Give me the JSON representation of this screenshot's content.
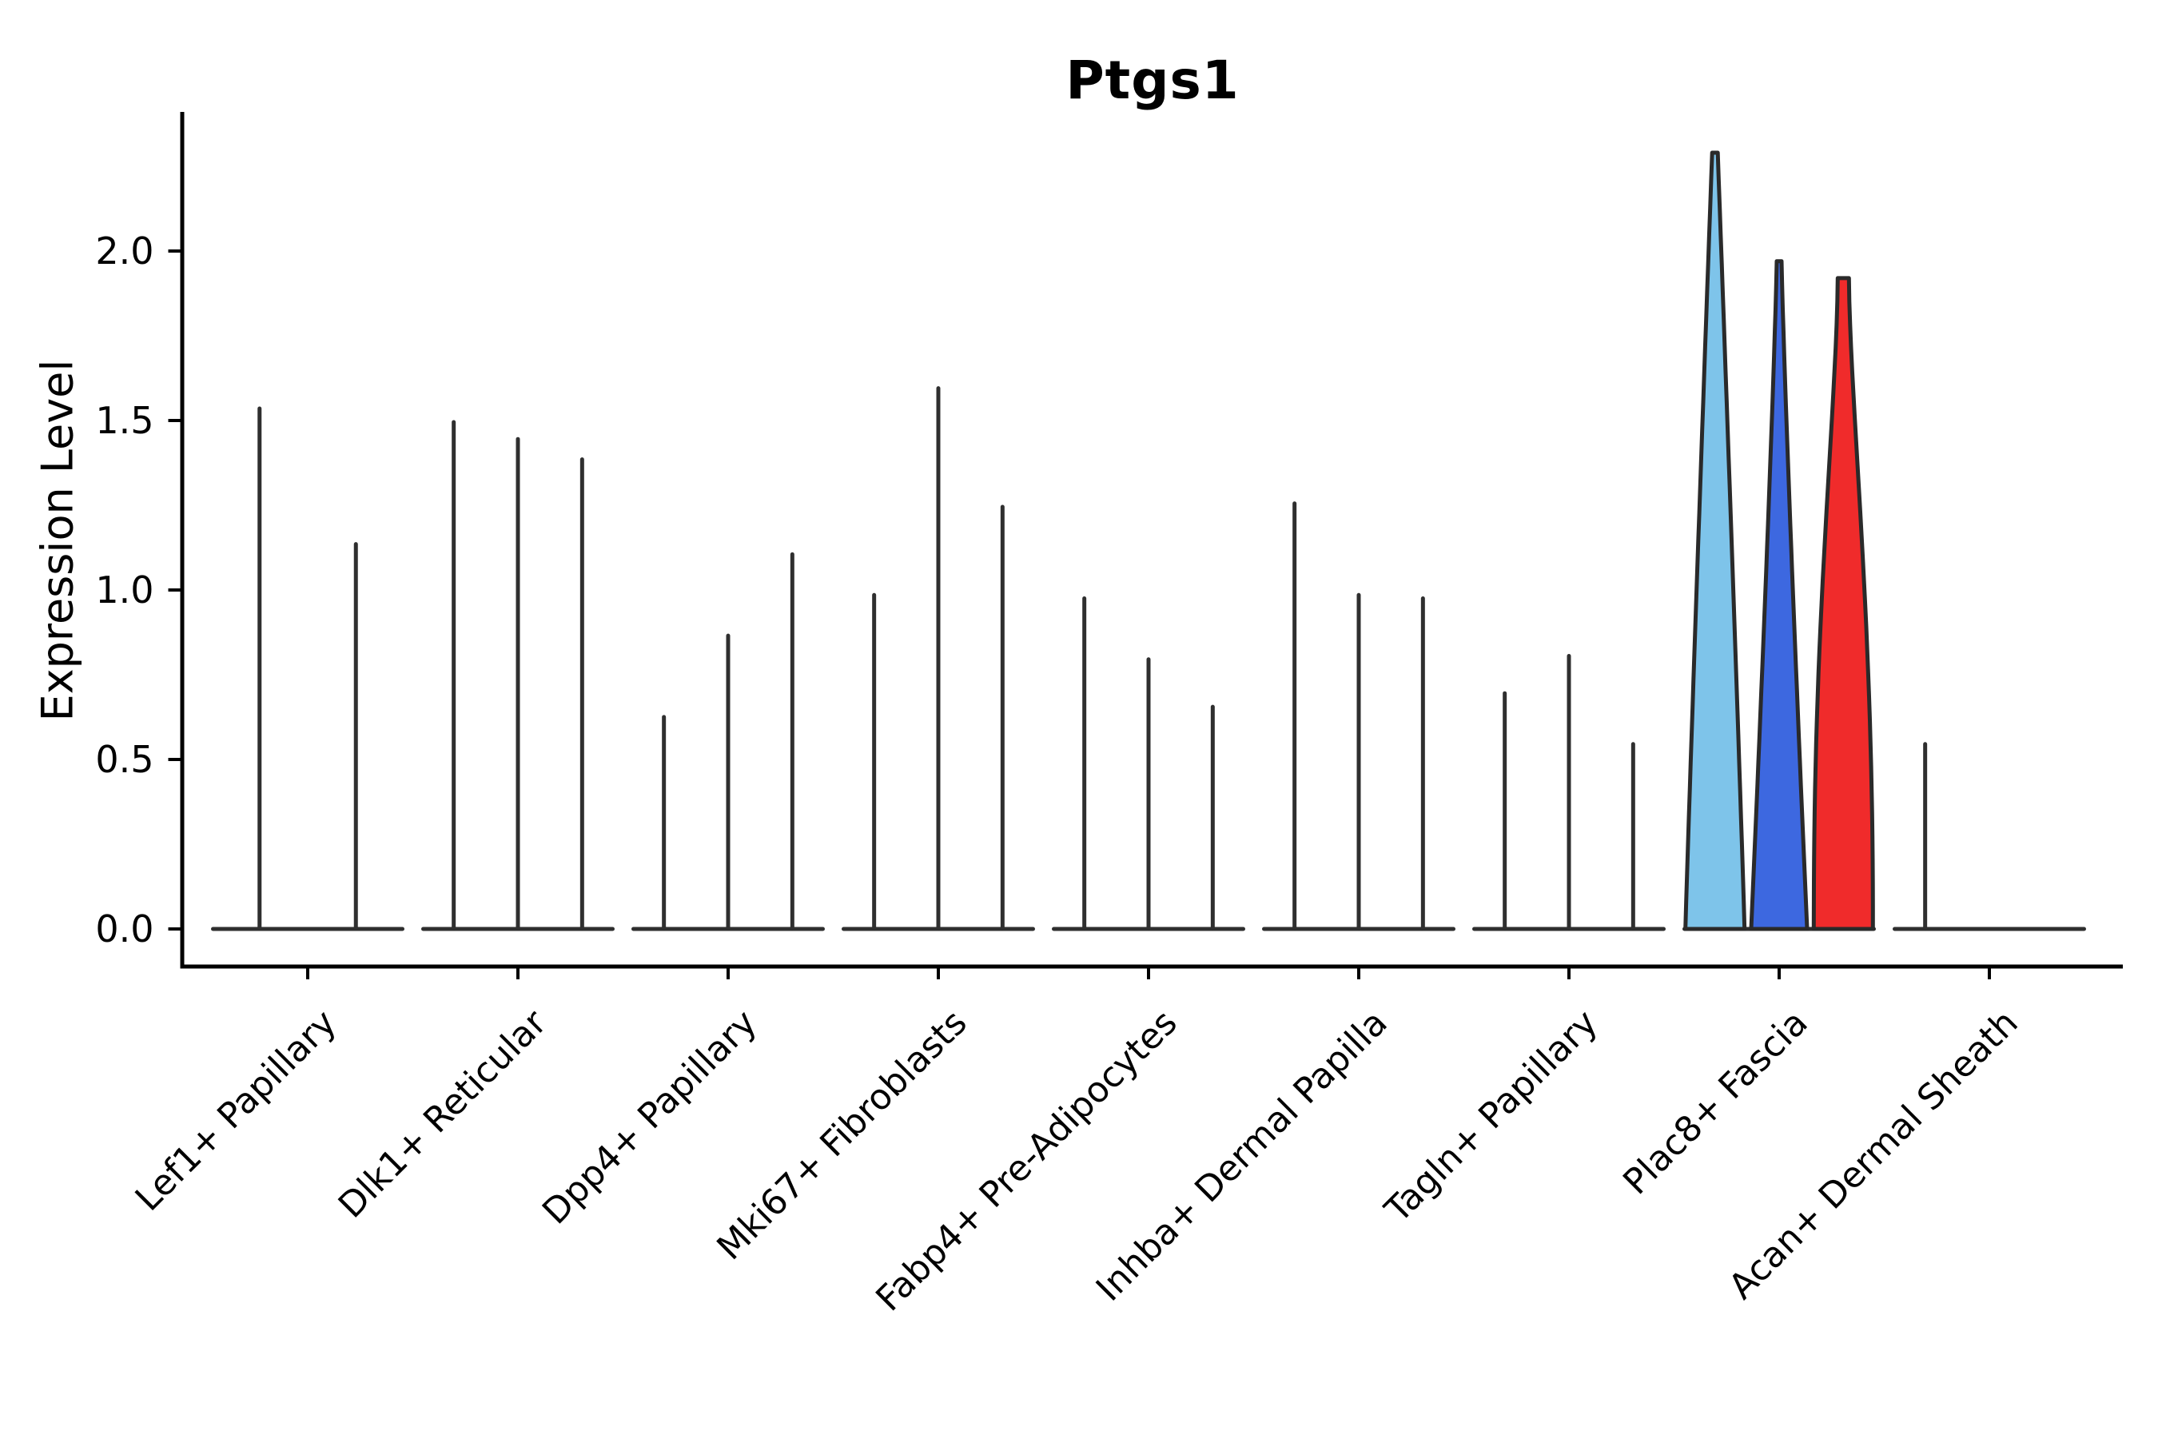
{
  "figure": {
    "title": "Ptgs1",
    "ylabel": "Expression Level"
  },
  "chart_data": {
    "type": "violin",
    "title": "Ptgs1",
    "ylabel": "Expression Level",
    "xlabel": "",
    "yticks": [
      "0.0",
      "0.5",
      "1.0",
      "1.5",
      "2.0"
    ],
    "ylim": [
      -0.11,
      2.41
    ],
    "grid": false,
    "legend": "none",
    "categories": [
      "Lef1+ Papillary",
      "Dlk1+ Reticular",
      "Dpp4+ Papillary",
      "Mki67+ Fibroblasts",
      "Fabp4+ Pre-Adipocytes",
      "Inhba+ Dermal Papilla",
      "Tagln+ Papillary",
      "Plac8+ Fascia",
      "Acan+ Dermal Sheath"
    ],
    "groups": [
      {
        "category": "Lef1+ Papillary",
        "violins": [
          {
            "style": "spike",
            "max": 1.54
          },
          {
            "style": "spike",
            "max": 1.14
          }
        ]
      },
      {
        "category": "Dlk1+ Reticular",
        "violins": [
          {
            "style": "spike",
            "max": 1.5
          },
          {
            "style": "spike",
            "max": 1.45
          },
          {
            "style": "spike",
            "max": 1.39
          }
        ]
      },
      {
        "category": "Dpp4+ Papillary",
        "violins": [
          {
            "style": "spike",
            "max": 0.63
          },
          {
            "style": "spike",
            "max": 0.87
          },
          {
            "style": "spike",
            "max": 1.11
          }
        ]
      },
      {
        "category": "Mki67+ Fibroblasts",
        "violins": [
          {
            "style": "spike",
            "max": 0.99
          },
          {
            "style": "spike",
            "max": 1.6
          },
          {
            "style": "spike",
            "max": 1.25
          }
        ]
      },
      {
        "category": "Fabp4+ Pre-Adipocytes",
        "violins": [
          {
            "style": "spike",
            "max": 0.98
          },
          {
            "style": "spike",
            "max": 0.8
          },
          {
            "style": "spike",
            "max": 0.66
          }
        ]
      },
      {
        "category": "Inhba+ Dermal Papilla",
        "violins": [
          {
            "style": "spike",
            "max": 1.26
          },
          {
            "style": "spike",
            "max": 0.99
          },
          {
            "style": "spike",
            "max": 0.98
          }
        ]
      },
      {
        "category": "Tagln+ Papillary",
        "violins": [
          {
            "style": "spike",
            "max": 0.7
          },
          {
            "style": "spike",
            "max": 0.81
          },
          {
            "style": "spike",
            "max": 0.55
          }
        ]
      },
      {
        "category": "Plac8+ Fascia",
        "violins": [
          {
            "style": "filled",
            "max": 2.29,
            "color": "#7EC4EA"
          },
          {
            "style": "filled",
            "max": 1.97,
            "color": "#3D68E0"
          },
          {
            "style": "filled",
            "max": 1.92,
            "color": "#F02B2B"
          }
        ]
      },
      {
        "category": "Acan+ Dermal Sheath",
        "violins": [
          {
            "style": "spike",
            "max": 0.55
          },
          {
            "style": "flat",
            "max": 0
          },
          {
            "style": "flat",
            "max": 0
          }
        ]
      }
    ],
    "colors": {
      "spike": "#2f2f2f",
      "violin_outline": "#2a2a2a",
      "axis": "#000000",
      "fascia_light_blue": "#7EC4EA",
      "fascia_dark_blue": "#3D68E0",
      "fascia_red": "#F02B2B"
    }
  }
}
